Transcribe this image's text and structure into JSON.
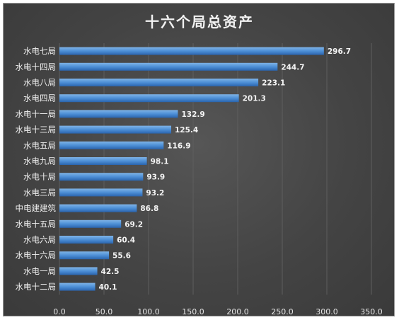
{
  "chart_data": {
    "type": "bar",
    "orientation": "horizontal",
    "title": "十六个局总资产",
    "categories": [
      "水电七局",
      "水电十四局",
      "水电八局",
      "水电四局",
      "水电十一局",
      "水电十三局",
      "水电五局",
      "水电九局",
      "水电十局",
      "水电三局",
      "中电建建筑",
      "水电十五局",
      "水电六局",
      "水电十六局",
      "水电一局",
      "水电十二局"
    ],
    "values": [
      296.7,
      244.7,
      223.1,
      201.3,
      132.9,
      125.4,
      116.9,
      98.1,
      93.9,
      93.2,
      86.8,
      69.2,
      60.4,
      55.6,
      42.5,
      40.1
    ],
    "value_labels": [
      "296.7",
      "244.7",
      "223.1",
      "201.3",
      "132.9",
      "125.4",
      "116.9",
      "98.1",
      "93.9",
      "93.2",
      "86.8",
      "69.2",
      "60.4",
      "55.6",
      "42.5",
      "40.1"
    ],
    "x_ticks": [
      0,
      50,
      100,
      150,
      200,
      250,
      300,
      350
    ],
    "x_tick_labels": [
      "0.0",
      "50.0",
      "100.0",
      "150.0",
      "200.0",
      "250.0",
      "300.0",
      "350.0"
    ],
    "xlim": [
      0,
      350
    ],
    "xlabel": "",
    "ylabel": "",
    "grid": "vertical",
    "legend": "none",
    "colors": {
      "bar_light": "#7fb3e6",
      "bar_mid": "#4d8fd6",
      "bar_dark": "#2a64ad",
      "background": "#474747"
    }
  }
}
